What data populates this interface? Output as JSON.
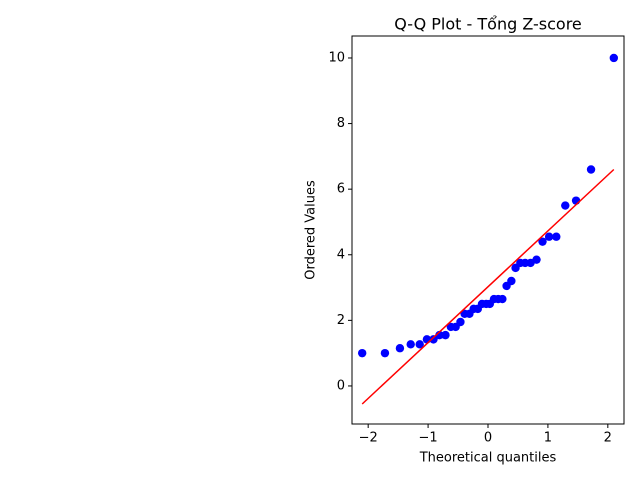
{
  "chart_data": {
    "type": "scatter",
    "title": "Q-Q Plot - Tổng Z-score",
    "x_label": "Theoretical quantiles",
    "y_label": "Ordered Values",
    "xlim": [
      -2.27,
      2.27
    ],
    "ylim": [
      -1.16,
      10.67
    ],
    "xticks": [
      {
        "value": -2,
        "label": "−2"
      },
      {
        "value": -1,
        "label": "−1"
      },
      0,
      1,
      2
    ],
    "yticks": [
      0,
      2,
      4,
      6,
      8,
      10
    ],
    "points": {
      "color": "#0000ff",
      "x": [
        -2.1,
        -1.72,
        -1.47,
        -1.29,
        -1.14,
        -1.02,
        -0.91,
        -0.81,
        -0.71,
        -0.62,
        -0.54,
        -0.46,
        -0.39,
        -0.31,
        -0.24,
        -0.17,
        -0.1,
        -0.03,
        0.03,
        0.1,
        0.17,
        0.24,
        0.31,
        0.39,
        0.46,
        0.54,
        0.62,
        0.71,
        0.81,
        0.91,
        1.02,
        1.14,
        1.29,
        1.47,
        1.72,
        2.1
      ],
      "y": [
        1.0,
        1.0,
        1.15,
        1.27,
        1.27,
        1.42,
        1.42,
        1.55,
        1.55,
        1.8,
        1.8,
        1.95,
        2.2,
        2.2,
        2.35,
        2.35,
        2.5,
        2.5,
        2.5,
        2.65,
        2.65,
        2.65,
        3.05,
        3.2,
        3.6,
        3.75,
        3.75,
        3.75,
        3.85,
        4.4,
        4.55,
        4.55,
        5.5,
        5.65,
        6.6,
        10.0
      ]
    },
    "fit_line": {
      "color": "#ff0000",
      "x": [
        -2.1,
        2.1
      ],
      "y": [
        -0.55,
        6.6
      ]
    }
  }
}
